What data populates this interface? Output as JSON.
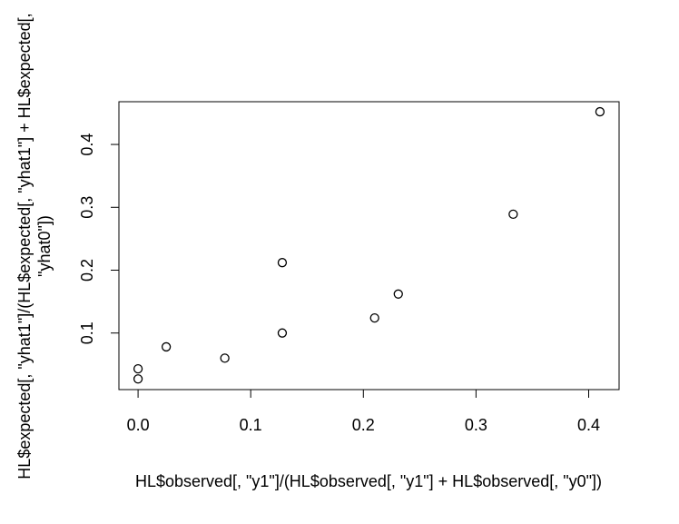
{
  "chart_data": {
    "type": "scatter",
    "title": "",
    "xlabel": "HL$observed[, \"y1\"]/(HL$observed[, \"y1\"] + HL$observed[, \"y0\"])",
    "ylabel_lines": [
      "HL$expected[, \"yhat1\"]/(HL$expected[, \"yhat1\"] + HL$expected[,",
      "\"yhat0\"])"
    ],
    "xlim": [
      -0.017,
      0.427
    ],
    "ylim": [
      0.01,
      0.468
    ],
    "x_ticks": [
      0.0,
      0.1,
      0.2,
      0.3,
      0.4
    ],
    "x_tick_labels": [
      "0.0",
      "0.1",
      "0.2",
      "0.3",
      "0.4"
    ],
    "y_ticks": [
      0.1,
      0.2,
      0.3,
      0.4
    ],
    "y_tick_labels": [
      "0.1",
      "0.2",
      "0.3",
      "0.4"
    ],
    "grid": false,
    "marker": "open-circle",
    "points": [
      {
        "x": 0.0,
        "y": 0.027
      },
      {
        "x": 0.0,
        "y": 0.043
      },
      {
        "x": 0.025,
        "y": 0.078
      },
      {
        "x": 0.077,
        "y": 0.06
      },
      {
        "x": 0.128,
        "y": 0.1
      },
      {
        "x": 0.128,
        "y": 0.212
      },
      {
        "x": 0.21,
        "y": 0.124
      },
      {
        "x": 0.231,
        "y": 0.162
      },
      {
        "x": 0.333,
        "y": 0.289
      },
      {
        "x": 0.41,
        "y": 0.452
      }
    ]
  }
}
